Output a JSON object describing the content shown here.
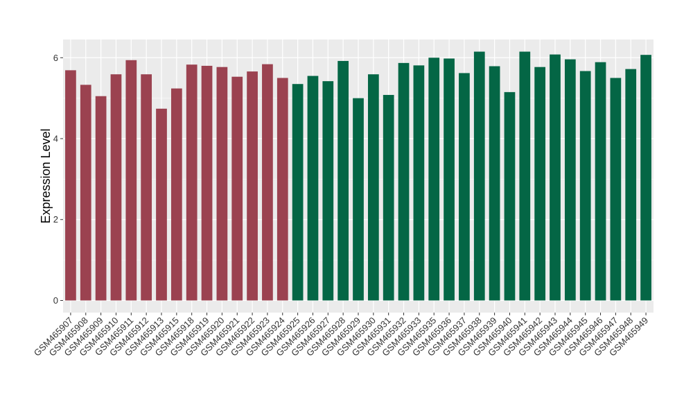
{
  "chart_data": {
    "type": "bar",
    "title": "",
    "xlabel": "",
    "ylabel": "Expression Level",
    "ylim": [
      -0.3,
      6.45
    ],
    "yticks": [
      0,
      2,
      4,
      6
    ],
    "grid": true,
    "panel_background": "#ebebeb",
    "colors": {
      "group1": "#9b4250",
      "group2": "#046645"
    },
    "categories": [
      "GSM465907",
      "GSM465908",
      "GSM465909",
      "GSM465910",
      "GSM465911",
      "GSM465912",
      "GSM465913",
      "GSM465915",
      "GSM465918",
      "GSM465919",
      "GSM465920",
      "GSM465921",
      "GSM465922",
      "GSM465923",
      "GSM465924",
      "GSM465925",
      "GSM465926",
      "GSM465927",
      "GSM465928",
      "GSM465929",
      "GSM465930",
      "GSM465931",
      "GSM465932",
      "GSM465933",
      "GSM465935",
      "GSM465936",
      "GSM465937",
      "GSM465938",
      "GSM465939",
      "GSM465940",
      "GSM465941",
      "GSM465942",
      "GSM465943",
      "GSM465944",
      "GSM465945",
      "GSM465946",
      "GSM465947",
      "GSM465948",
      "GSM465949"
    ],
    "values": [
      5.69,
      5.33,
      5.05,
      5.59,
      5.94,
      5.59,
      4.74,
      5.24,
      5.83,
      5.8,
      5.77,
      5.53,
      5.66,
      5.84,
      5.5,
      5.35,
      5.55,
      5.42,
      5.92,
      5.0,
      5.59,
      5.08,
      5.87,
      5.81,
      6.0,
      5.98,
      5.62,
      6.15,
      5.79,
      5.15,
      6.15,
      5.77,
      6.08,
      5.96,
      5.67,
      5.89,
      5.5,
      5.72,
      6.07
    ],
    "groups": [
      1,
      1,
      1,
      1,
      1,
      1,
      1,
      1,
      1,
      1,
      1,
      1,
      1,
      1,
      1,
      2,
      2,
      2,
      2,
      2,
      2,
      2,
      2,
      2,
      2,
      2,
      2,
      2,
      2,
      2,
      2,
      2,
      2,
      2,
      2,
      2,
      2,
      2,
      2
    ]
  }
}
